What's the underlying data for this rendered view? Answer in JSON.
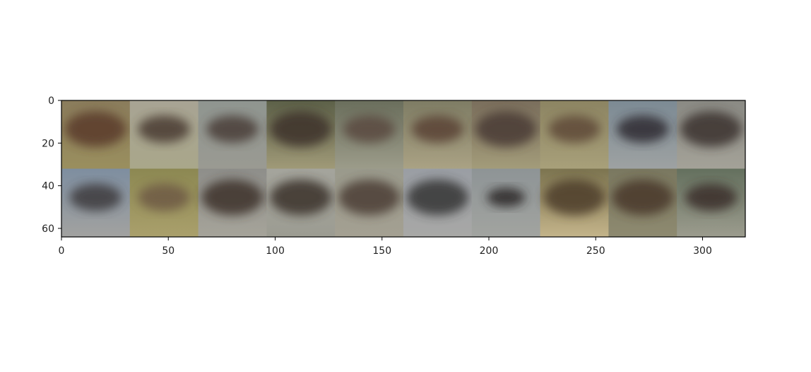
{
  "chart_data": {
    "type": "image",
    "title": "",
    "xlabel": "",
    "ylabel": "",
    "xlim": [
      0,
      320
    ],
    "ylim": [
      64,
      0
    ],
    "x_ticks": [
      0,
      50,
      100,
      150,
      200,
      250,
      300
    ],
    "y_ticks": [
      0,
      20,
      40,
      60
    ],
    "x_tick_labels": [
      "0",
      "50",
      "100",
      "150",
      "200",
      "250",
      "300"
    ],
    "y_tick_labels": [
      "0",
      "20",
      "40",
      "60"
    ],
    "grid": false,
    "tile_size": 32,
    "rows": 2,
    "cols": 10,
    "tiles": [
      {
        "row": 0,
        "col": 0,
        "bg_top": "#8a7c5c",
        "bg_bottom": "#9a8f5e",
        "blob": "#5a3a2c",
        "blob_size": "large"
      },
      {
        "row": 0,
        "col": 1,
        "bg_top": "#a8a494",
        "bg_bottom": "#a9a78a",
        "blob": "#4a3a32",
        "blob_size": "medium"
      },
      {
        "row": 0,
        "col": 2,
        "bg_top": "#8f9590",
        "bg_bottom": "#9a9a92",
        "blob": "#4a3c38",
        "blob_size": "medium"
      },
      {
        "row": 0,
        "col": 3,
        "bg_top": "#5c6048",
        "bg_bottom": "#a09a78",
        "blob": "#3e302a",
        "blob_size": "large"
      },
      {
        "row": 0,
        "col": 4,
        "bg_top": "#6a6e5c",
        "bg_bottom": "#9c9c8a",
        "blob": "#5a4a40",
        "blob_size": "medium"
      },
      {
        "row": 0,
        "col": 5,
        "bg_top": "#7e7c64",
        "bg_bottom": "#aaa284",
        "blob": "#5a4236",
        "blob_size": "medium"
      },
      {
        "row": 0,
        "col": 6,
        "bg_top": "#7a6e5c",
        "bg_bottom": "#a39c7a",
        "blob": "#4a3a34",
        "blob_size": "large"
      },
      {
        "row": 0,
        "col": 7,
        "bg_top": "#8c8462",
        "bg_bottom": "#a8a07a",
        "blob": "#5e4838",
        "blob_size": "medium"
      },
      {
        "row": 0,
        "col": 8,
        "bg_top": "#7c8a94",
        "bg_bottom": "#9ea2a2",
        "blob": "#2e2c30",
        "blob_size": "medium"
      },
      {
        "row": 0,
        "col": 9,
        "bg_top": "#8a8a84",
        "bg_bottom": "#a4a298",
        "blob": "#3a302e",
        "blob_size": "large"
      },
      {
        "row": 1,
        "col": 0,
        "bg_top": "#7e8ea0",
        "bg_bottom": "#a2a2a0",
        "blob": "#3c3a3e",
        "blob_size": "medium"
      },
      {
        "row": 1,
        "col": 1,
        "bg_top": "#8c8852",
        "bg_bottom": "#aaa06c",
        "blob": "#6e5a44",
        "blob_size": "medium"
      },
      {
        "row": 1,
        "col": 2,
        "bg_top": "#8e8e8a",
        "bg_bottom": "#a6a49a",
        "blob": "#3c302c",
        "blob_size": "large"
      },
      {
        "row": 1,
        "col": 3,
        "bg_top": "#a4a49c",
        "bg_bottom": "#9c9c92",
        "blob": "#3a302c",
        "blob_size": "large"
      },
      {
        "row": 1,
        "col": 4,
        "bg_top": "#9a9a8c",
        "bg_bottom": "#a4a092",
        "blob": "#4c3e34",
        "blob_size": "large"
      },
      {
        "row": 1,
        "col": 5,
        "bg_top": "#9a9ea4",
        "bg_bottom": "#a8a8a6",
        "blob": "#363436",
        "blob_size": "large"
      },
      {
        "row": 1,
        "col": 6,
        "bg_top": "#8e9496",
        "bg_bottom": "#a2a4a0",
        "blob": "#2c2826",
        "blob_size": "small"
      },
      {
        "row": 1,
        "col": 7,
        "bg_top": "#7c7450",
        "bg_bottom": "#c4b48a",
        "blob": "#4e3c2c",
        "blob_size": "large"
      },
      {
        "row": 1,
        "col": 8,
        "bg_top": "#7a7860",
        "bg_bottom": "#8e8a70",
        "blob": "#48382c",
        "blob_size": "large"
      },
      {
        "row": 1,
        "col": 9,
        "bg_top": "#64705e",
        "bg_bottom": "#9c9c8e",
        "blob": "#3a2e2a",
        "blob_size": "medium"
      }
    ],
    "colors": {
      "axis": "#000000",
      "tick_text": "#222222",
      "background": "#ffffff"
    }
  }
}
